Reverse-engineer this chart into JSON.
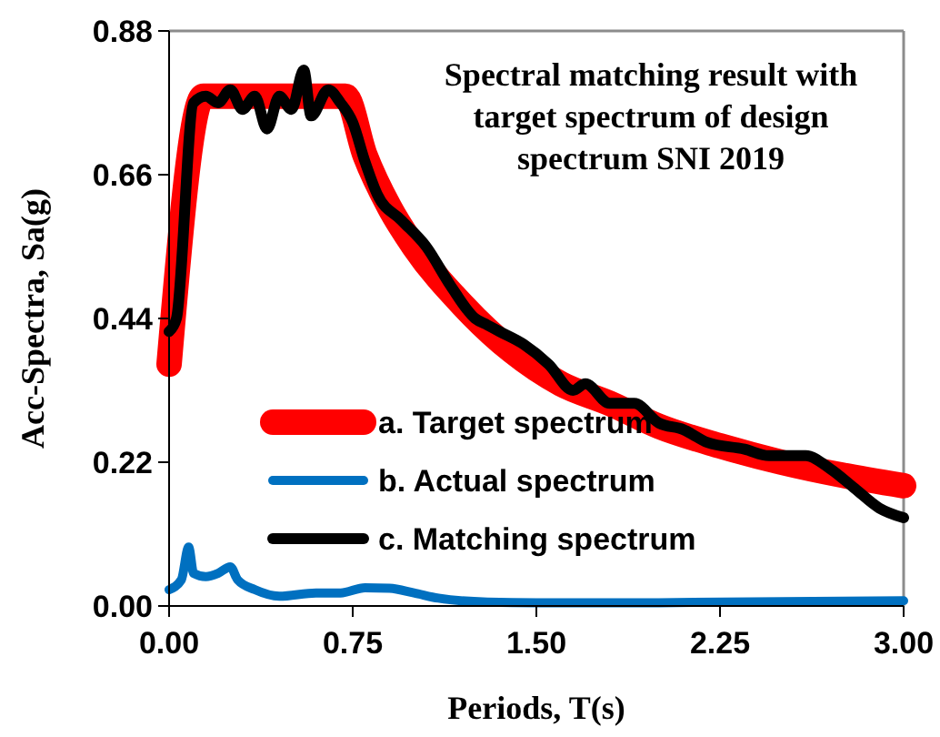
{
  "chart_data": {
    "type": "line",
    "title": "Spectral matching result with target spectrum of design spectrum SNI 2019",
    "xlabel": "Periods, T(s)",
    "ylabel": "Acc-Spectra, Sa(g)",
    "xlim": [
      0,
      3
    ],
    "xticks": [
      {
        "value": 0,
        "label": "0.00"
      },
      {
        "value": 0.75,
        "label": "0.75"
      },
      {
        "value": 1.5,
        "label": "1.50"
      },
      {
        "value": 2.25,
        "label": "2.25"
      },
      {
        "value": 3,
        "label": "3.00"
      }
    ],
    "ylim": [
      0,
      0.88
    ],
    "yticks": [
      {
        "value": 0,
        "label": "0.00"
      },
      {
        "value": 0.22,
        "label": "0.22"
      },
      {
        "value": 0.44,
        "label": "0.44"
      },
      {
        "value": 0.66,
        "label": "0.66"
      },
      {
        "value": 0.88,
        "label": "0.88"
      }
    ],
    "grid": false,
    "legend": "bottom",
    "marker": "none",
    "line_style": "solid",
    "series": [
      {
        "name": "a. Target spectrum",
        "color": "#ff0000",
        "x": [
          0,
          0.14,
          0.72,
          0.8,
          0.9,
          1.0,
          1.2,
          1.4,
          1.6,
          1.8,
          2.0,
          2.25,
          2.5,
          2.75,
          3.0
        ],
        "values": [
          0.37,
          0.78,
          0.78,
          0.69,
          0.61,
          0.55,
          0.46,
          0.39,
          0.34,
          0.31,
          0.275,
          0.245,
          0.22,
          0.2,
          0.184
        ]
      },
      {
        "name": "b. Actual spectrum",
        "color": "#0070c0",
        "x": [
          0,
          0.05,
          0.08,
          0.1,
          0.15,
          0.2,
          0.25,
          0.28,
          0.35,
          0.45,
          0.6,
          0.7,
          0.8,
          0.9,
          1.0,
          1.1,
          1.3,
          1.5,
          2.0,
          3.0
        ],
        "values": [
          0.025,
          0.04,
          0.09,
          0.05,
          0.045,
          0.05,
          0.06,
          0.04,
          0.025,
          0.015,
          0.02,
          0.02,
          0.028,
          0.027,
          0.02,
          0.012,
          0.006,
          0.005,
          0.005,
          0.008
        ]
      },
      {
        "name": "c. Matching spectrum",
        "color": "#000000",
        "x": [
          0,
          0.03,
          0.1,
          0.15,
          0.2,
          0.25,
          0.3,
          0.35,
          0.4,
          0.45,
          0.5,
          0.55,
          0.58,
          0.65,
          0.7,
          0.75,
          0.8,
          0.85,
          0.95,
          1.05,
          1.15,
          1.25,
          1.3,
          1.35,
          1.45,
          1.55,
          1.65,
          1.7,
          1.8,
          1.9,
          2.0,
          2.1,
          2.2,
          2.35,
          2.45,
          2.6,
          2.7,
          2.8,
          2.9,
          3.0
        ],
        "values": [
          0.42,
          0.44,
          0.77,
          0.78,
          0.77,
          0.79,
          0.76,
          0.78,
          0.73,
          0.78,
          0.76,
          0.82,
          0.75,
          0.79,
          0.77,
          0.74,
          0.68,
          0.63,
          0.59,
          0.55,
          0.49,
          0.44,
          0.43,
          0.42,
          0.4,
          0.37,
          0.33,
          0.34,
          0.31,
          0.31,
          0.28,
          0.27,
          0.25,
          0.24,
          0.23,
          0.23,
          0.21,
          0.18,
          0.15,
          0.135
        ]
      }
    ]
  }
}
